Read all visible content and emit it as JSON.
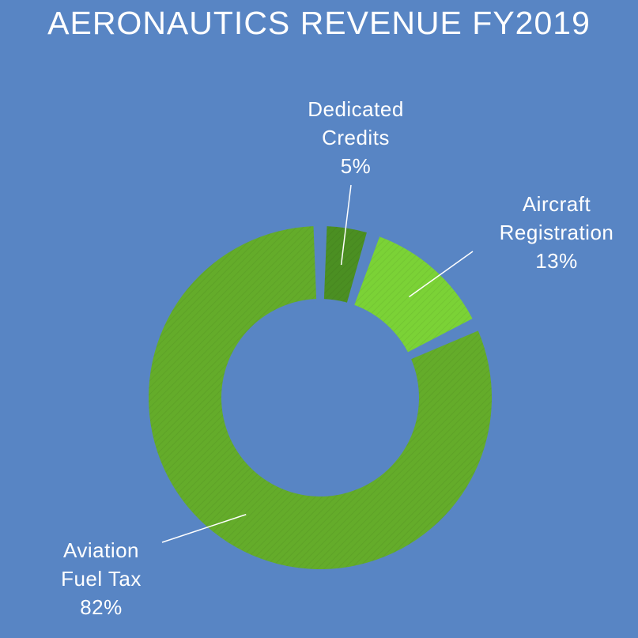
{
  "chart_data": {
    "type": "pie",
    "title": "AERONAUTICS REVENUE FY2019",
    "donut": true,
    "slices": [
      {
        "name_lines": [
          "Dedicated",
          "Credits"
        ],
        "value": 5,
        "value_label": "5%",
        "color": "#4b8f22"
      },
      {
        "name_lines": [
          "Aircraft",
          "Registration"
        ],
        "value": 13,
        "value_label": "13%",
        "color": "#7bd236"
      },
      {
        "name_lines": [
          "Aviation",
          "Fuel Tax"
        ],
        "value": 82,
        "value_label": "82%",
        "color": "#64ac2a"
      }
    ]
  },
  "colors": {
    "background": "#5885c4",
    "leader_line": "#ffffff"
  }
}
